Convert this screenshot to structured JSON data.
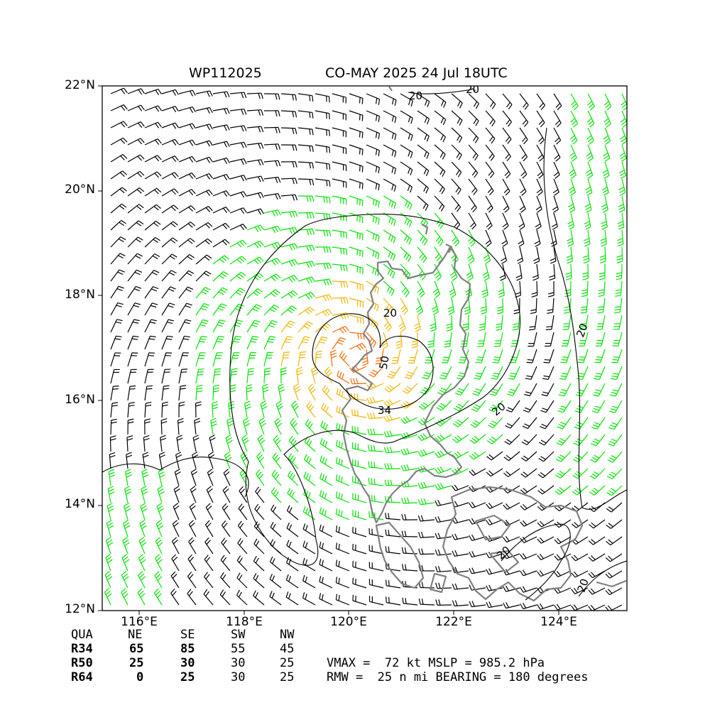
{
  "title": {
    "storm_id": "WP112025",
    "name_time": "CO-MAY 2025 24 Jul 18UTC"
  },
  "axes": {
    "lat_labels": [
      "22°N",
      "20°N",
      "18°N",
      "16°N",
      "14°N",
      "12°N"
    ],
    "lon_labels": [
      "116°E",
      "118°E",
      "120°E",
      "122°E",
      "124°E"
    ],
    "lat_range": [
      12,
      22
    ],
    "lon_range": [
      115.3,
      125.3
    ]
  },
  "contour_labels": [
    "20",
    "20",
    "20",
    "20",
    "20",
    "20",
    "20",
    "50",
    "34"
  ],
  "colors": {
    "below_34kt": "#000000",
    "34kt": "#00e600",
    "50kt": "#f0b400",
    "64kt": "#ff6600",
    "coastline": "#808080"
  },
  "wind_radii": {
    "headers": [
      "QUA",
      "NE",
      "SE",
      "SW",
      "NW"
    ],
    "rows": [
      {
        "label": "R34",
        "values": [
          "65",
          "85",
          "55",
          "45"
        ]
      },
      {
        "label": "R50",
        "values": [
          "25",
          "30",
          "30",
          "25"
        ]
      },
      {
        "label": "R64",
        "values": [
          "0",
          "25",
          "30",
          "25"
        ]
      }
    ]
  },
  "stats": {
    "line1": "VMAX =  72 kt MSLP = 985.2 hPa",
    "line2": "RMW =  25 n mi BEARING = 180 degrees"
  }
}
